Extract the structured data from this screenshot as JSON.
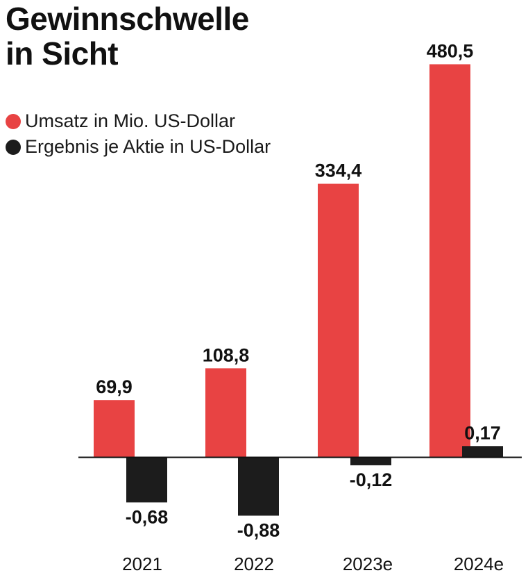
{
  "chart_data": {
    "type": "bar",
    "title_lines": [
      "Gewinnschwelle",
      "in Sicht"
    ],
    "categories": [
      "2021",
      "2022",
      "2023e",
      "2024e"
    ],
    "series": [
      {
        "name": "Umsatz in Mio. US-Dollar",
        "color": "#e84343",
        "values": [
          69.9,
          108.8,
          334.4,
          480.5
        ],
        "labels": [
          "69,9",
          "108,8",
          "334,4",
          "480,5"
        ]
      },
      {
        "name": "Ergebnis je Aktie in US-Dollar",
        "color": "#1c1c1c",
        "values": [
          -0.68,
          -0.88,
          -0.12,
          0.17
        ],
        "labels": [
          "-0,68",
          "-0,88",
          "-0,12",
          "0,17"
        ]
      }
    ],
    "legend_position": "top-left",
    "grid": false
  }
}
